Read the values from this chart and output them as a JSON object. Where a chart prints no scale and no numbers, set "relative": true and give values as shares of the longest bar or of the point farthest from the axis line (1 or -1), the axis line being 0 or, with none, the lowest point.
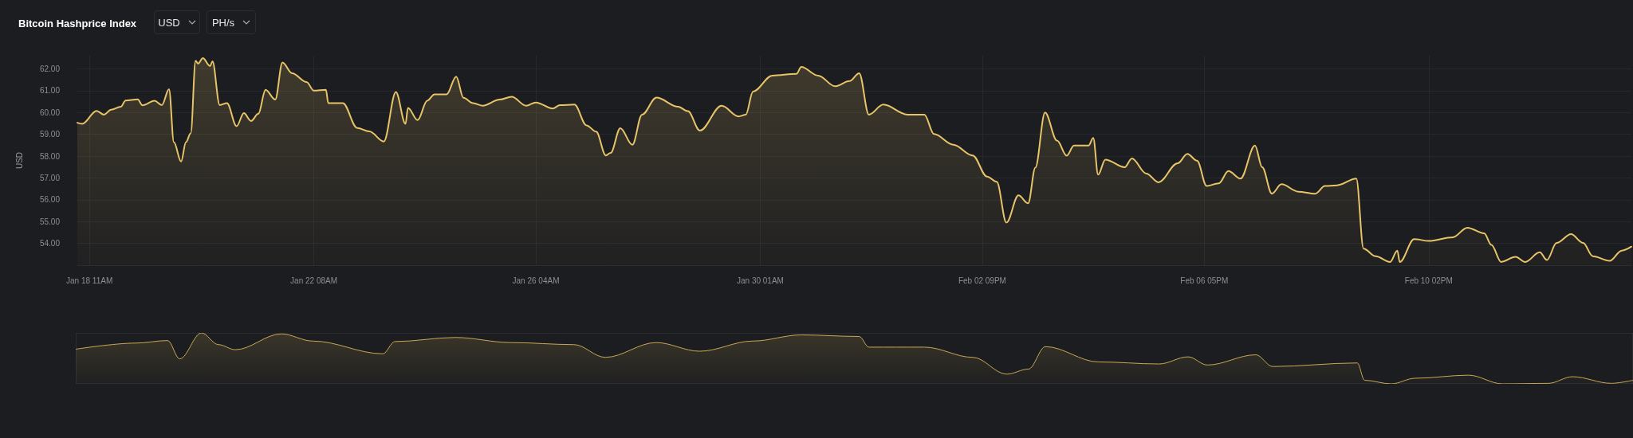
{
  "chart_data": [
    {
      "type": "area",
      "title": "Bitcoin Hashprice Index",
      "ylabel": "USD",
      "annotations": [
        "USD",
        "PH/s"
      ],
      "x": [
        "--01-18T06:00",
        "--01-18T08:00",
        "--01-18T14:00",
        "--01-18T17:00",
        "--01-18T20:00",
        "--01-19T00:00",
        "--01-19T02:00",
        "--01-19T07:00",
        "--01-19T09:00",
        "--01-19T14:00",
        "--01-19T17:00",
        "--01-19T20:00",
        "--01-19T22:00",
        "--01-20T01:00",
        "--01-20T03:00",
        "--01-20T05:00",
        "--01-20T07:00",
        "--01-20T08:00",
        "--01-20T10:00",
        "--01-20T13:00",
        "--01-20T14:00",
        "--01-20T17:00",
        "--01-20T20:00",
        "--01-21T00:00",
        "--01-21T03:00",
        "--01-21T06:00",
        "--01-21T09:00",
        "--01-21T12:00",
        "--01-21T16:00",
        "--01-21T19:00",
        "--01-21T23:00",
        "--01-22T05:00",
        "--01-22T08:00",
        "--01-22T13:00",
        "--01-22T14:00",
        "--01-22T20:00",
        "--01-23T02:00",
        "--01-23T07:00",
        "--01-23T13:00",
        "--01-23T18:00",
        "--01-23T22:00",
        "--01-23T23:00",
        "--01-24T03:00",
        "--01-24T07:00",
        "--01-24T10:00",
        "--01-24T15:00",
        "--01-24T19:00",
        "--01-24T22:00",
        "--01-25T02:00",
        "--01-25T06:00",
        "--01-25T13:00",
        "--01-25T18:00",
        "--01-26T00:00",
        "--01-26T04:00",
        "--01-26T11:00",
        "--01-26T14:00",
        "--01-26T20:00",
        "--01-27T01:00",
        "--01-27T05:00",
        "--01-27T09:00",
        "--01-27T11:00",
        "--01-27T15:00",
        "--01-27T20:00",
        "--01-28T00:00",
        "--01-28T06:00",
        "--01-28T15:00",
        "--01-28T19:00",
        "--01-29T00:00",
        "--01-29T09:00",
        "--01-29T16:00",
        "--01-29T19:00",
        "--01-29T22:00",
        "--01-30T06:00",
        "--01-30T16:00",
        "--01-30T18:00",
        "--01-31T01:00",
        "--01-31T08:00",
        "--01-31T14:00",
        "--01-31T18:00",
        "--01-31T22:00",
        "--02-01T04:00",
        "--02-01T14:00",
        "--02-01T21:00",
        "--02-02T01:00",
        "--02-02T09:00",
        "--02-02T17:00",
        "--02-02T23:00",
        "--02-03T03:00",
        "--02-03T07:00",
        "--02-03T12:00",
        "--02-03T16:00",
        "--02-03T19:00",
        "--02-03T23:00",
        "--02-04T04:00",
        "--02-04T08:00",
        "--02-04T11:00",
        "--02-04T17:00",
        "--02-04T19:00",
        "--02-04T21:00",
        "--02-05T00:00",
        "--02-05T08:00",
        "--02-05T11:00",
        "--02-05T17:00",
        "--02-05T22:00",
        "--02-06T06:00",
        "--02-06T10:00",
        "--02-06T14:00",
        "--02-06T18:00",
        "--02-06T23:00",
        "--02-07T03:00",
        "--02-07T08:00",
        "--02-07T14:00",
        "--02-07T17:00",
        "--02-07T21:00",
        "--02-08T01:00",
        "--02-08T08:00",
        "--02-08T15:00",
        "--02-08T19:00",
        "--02-09T00:00",
        "--02-09T08:00",
        "--02-09T11:00",
        "--02-09T16:00",
        "--02-09T22:00",
        "--02-10T01:00",
        "--02-10T02:00",
        "--02-10T08:00",
        "--02-10T14:00",
        "--02-11T00:00",
        "--02-11T06:00",
        "--02-11T13:00",
        "--02-11T16:00",
        "--02-11T20:00",
        "--02-12T02:00",
        "--02-12T06:00",
        "--02-12T12:00",
        "--02-12T15:00",
        "--02-12T19:00",
        "--02-13T01:00",
        "--02-13T06:00",
        "--02-13T10:00",
        "--02-13T17:00",
        "--02-13T22:00",
        "--02-14T02:00"
      ],
      "series": [
        {
          "color": "#e8c468",
          "values": [
            59.53,
            59.48,
            60.07,
            59.9,
            60.13,
            60.26,
            60.55,
            60.6,
            60.33,
            60.54,
            60.34,
            61.07,
            58.64,
            57.75,
            58.64,
            59.05,
            62.37,
            62.24,
            62.49,
            62.13,
            62.34,
            60.34,
            60.43,
            59.37,
            59.97,
            59.61,
            59.94,
            61.04,
            60.59,
            62.29,
            61.8,
            61.4,
            61.0,
            61.04,
            60.43,
            60.43,
            59.29,
            59.13,
            58.67,
            60.94,
            59.48,
            60.21,
            59.65,
            60.54,
            60.83,
            60.83,
            61.64,
            60.67,
            60.43,
            60.31,
            60.59,
            60.72,
            60.31,
            60.46,
            60.18,
            60.34,
            60.36,
            59.41,
            59.12,
            58.03,
            58.15,
            59.28,
            58.52,
            59.9,
            60.68,
            60.26,
            60.06,
            59.17,
            60.31,
            59.82,
            59.9,
            60.96,
            61.69,
            61.77,
            62.09,
            61.69,
            61.2,
            61.44,
            61.8,
            59.9,
            60.36,
            59.9,
            59.9,
            59.01,
            58.52,
            58.03,
            57.06,
            56.82,
            54.95,
            56.2,
            55.84,
            57.47,
            60.0,
            58.71,
            58.02,
            58.48,
            58.48,
            58.83,
            57.15,
            57.84,
            57.49,
            57.89,
            57.2,
            56.8,
            57.67,
            58.1,
            57.79,
            56.63,
            56.75,
            57.32,
            56.97,
            58.48,
            57.49,
            56.28,
            56.71,
            56.37,
            56.28,
            56.63,
            56.66,
            56.97,
            53.76,
            53.41,
            53.15,
            53.67,
            53.15,
            54.2,
            54.11,
            54.28,
            54.72,
            54.46,
            53.93,
            53.15,
            53.38,
            53.15,
            53.59,
            53.24,
            54.02,
            54.42,
            54.02,
            53.41,
            53.2,
            53.67,
            53.85
          ]
        }
      ],
      "xlim": [
        "--01-18T06:00",
        "--02-14T02:00"
      ],
      "xticks": [
        {
          "value": "--01-18T11:00",
          "label": "Jan 18 11AM"
        },
        {
          "value": "--01-22T08:00",
          "label": "Jan 22 08AM"
        },
        {
          "value": "--01-26T04:00",
          "label": "Jan 26 04AM"
        },
        {
          "value": "--01-30T01:00",
          "label": "Jan 30 01AM"
        },
        {
          "value": "--02-02T21:00",
          "label": "Feb 02 09PM"
        },
        {
          "value": "--02-06T17:00",
          "label": "Feb 06 05PM"
        },
        {
          "value": "--02-10T14:00",
          "label": "Feb 10 02PM"
        }
      ],
      "ylim": [
        53,
        62.6
      ],
      "yticks": [
        {
          "value": 54,
          "label": "54.00"
        },
        {
          "value": 55,
          "label": "55.00"
        },
        {
          "value": 56,
          "label": "56.00"
        },
        {
          "value": 57,
          "label": "57.00"
        },
        {
          "value": 58,
          "label": "58.00"
        },
        {
          "value": 59,
          "label": "59.00"
        },
        {
          "value": 60,
          "label": "60.00"
        },
        {
          "value": 61,
          "label": "61.00"
        },
        {
          "value": 62,
          "label": "62.00"
        }
      ],
      "grid": true,
      "marker": "none",
      "line_style": "solid"
    },
    {
      "type": "area",
      "relative": true,
      "x": [
        "--01-18T06:00",
        "--01-19T07:00",
        "--01-19T20:00",
        "--01-20T01:00",
        "--01-20T10:00",
        "--01-20T17:00",
        "--01-21T00:00",
        "--01-21T19:00",
        "--01-22T08:00",
        "--01-23T13:00",
        "--01-23T18:00",
        "--01-24T19:00",
        "--01-25T18:00",
        "--01-26T20:00",
        "--01-27T09:00",
        "--01-28T06:00",
        "--01-29T00:00",
        "--01-29T22:00",
        "--01-30T18:00",
        "--01-31T18:00",
        "--01-31T22:00",
        "--02-01T21:00",
        "--02-02T17:00",
        "--02-03T07:00",
        "--02-03T16:00",
        "--02-03T23:00",
        "--02-04T21:00",
        "--02-05T22:00",
        "--02-06T10:00",
        "--02-06T18:00",
        "--02-07T14:00",
        "--02-07T21:00",
        "--02-09T08:00",
        "--02-09T11:00",
        "--02-09T22:00",
        "--02-10T08:00",
        "--02-11T06:00",
        "--02-11T20:00",
        "--02-12T15:00",
        "--02-13T01:00",
        "--02-13T17:00",
        "--02-14T02:00"
      ],
      "series": [
        {
          "color": "#c9a955",
          "values": [
            0.68,
            0.8,
            0.85,
            0.49,
            1,
            0.77,
            0.67,
            0.98,
            0.84,
            0.59,
            0.83,
            0.91,
            0.81,
            0.77,
            0.52,
            0.81,
            0.64,
            0.84,
            0.96,
            0.93,
            0.72,
            0.72,
            0.52,
            0.19,
            0.29,
            0.73,
            0.43,
            0.39,
            0.53,
            0.37,
            0.57,
            0.34,
            0.41,
            0.07,
            0,
            0.11,
            0.17,
            0,
            0.01,
            0.14,
            0.01,
            0.07
          ]
        }
      ],
      "xlim": [
        "--01-18T06:00",
        "--02-14T02:00"
      ],
      "marker": "none",
      "line_style": "solid"
    }
  ]
}
